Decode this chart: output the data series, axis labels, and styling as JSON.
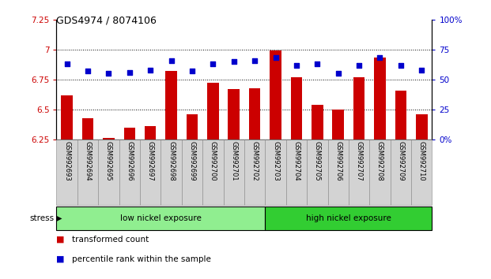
{
  "title": "GDS4974 / 8074106",
  "samples": [
    "GSM992693",
    "GSM992694",
    "GSM992695",
    "GSM992696",
    "GSM992697",
    "GSM992698",
    "GSM992699",
    "GSM992700",
    "GSM992701",
    "GSM992702",
    "GSM992703",
    "GSM992704",
    "GSM992705",
    "GSM992706",
    "GSM992707",
    "GSM992708",
    "GSM992709",
    "GSM992710"
  ],
  "bar_values": [
    6.62,
    6.43,
    6.26,
    6.35,
    6.36,
    6.82,
    6.46,
    6.72,
    6.67,
    6.68,
    6.99,
    6.77,
    6.54,
    6.5,
    6.77,
    6.93,
    6.66,
    6.46
  ],
  "dot_values": [
    63,
    57,
    55,
    56,
    58,
    66,
    57,
    63,
    65,
    66,
    68,
    62,
    63,
    55,
    62,
    68,
    62,
    58
  ],
  "bar_color": "#cc0000",
  "dot_color": "#0000cc",
  "ymin": 6.25,
  "ymax": 7.25,
  "y2min": 0,
  "y2max": 100,
  "yticks": [
    6.25,
    6.5,
    6.75,
    7.0,
    7.25
  ],
  "y2ticks": [
    0,
    25,
    50,
    75,
    100
  ],
  "ytick_labels": [
    "6.25",
    "6.5",
    "6.75",
    "7",
    "7.25"
  ],
  "y2tick_labels": [
    "0%",
    "25",
    "50",
    "75",
    "100%"
  ],
  "low_nickel_count": 10,
  "high_nickel_count": 8,
  "low_nickel_label": "low nickel exposure",
  "high_nickel_label": "high nickel exposure",
  "group_label": "stress",
  "low_nickel_color": "#90ee90",
  "high_nickel_color": "#32cd32",
  "legend_bar_label": "transformed count",
  "legend_dot_label": "percentile rank within the sample",
  "xticklabel_bg": "#d3d3d3",
  "fig_width": 6.21,
  "fig_height": 3.54,
  "dpi": 100
}
